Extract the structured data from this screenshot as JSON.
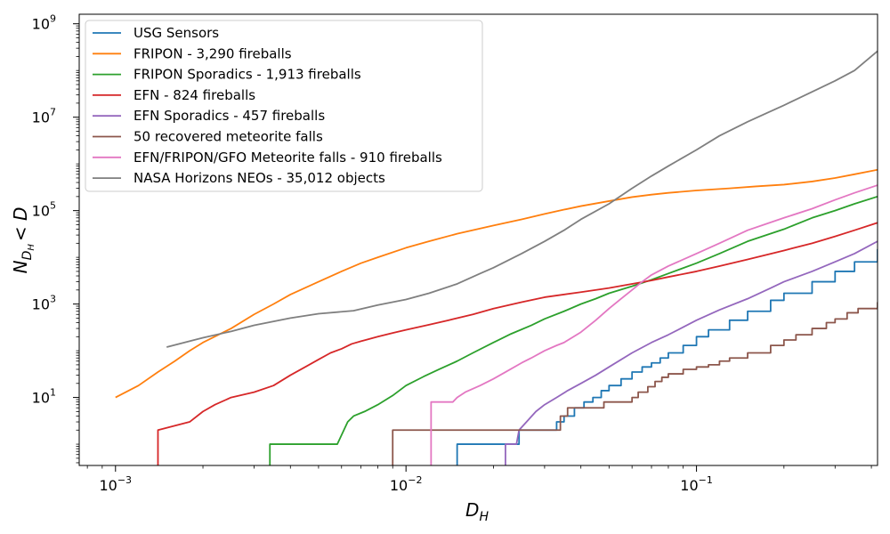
{
  "chart_data": {
    "type": "line",
    "title": "",
    "xlabel": {
      "main": "D",
      "sub": "H"
    },
    "ylabel": {
      "main": "N",
      "sub": "D",
      "subsub": "H",
      "rest": "< D"
    },
    "xscale": "log",
    "yscale": "log",
    "xlim": [
      0.00075,
      0.42
    ],
    "ylim": [
      0.35,
      1600000000.0
    ],
    "grid": false,
    "legend_position": "top-left",
    "xticks": [
      {
        "value": 0.001,
        "base": "10",
        "exp": "−3"
      },
      {
        "value": 0.01,
        "base": "10",
        "exp": "−2"
      },
      {
        "value": 0.1,
        "base": "10",
        "exp": "−1"
      }
    ],
    "yticks": [
      {
        "value": 10,
        "base": "10",
        "exp": "1"
      },
      {
        "value": 1000,
        "base": "10",
        "exp": "3"
      },
      {
        "value": 100000,
        "base": "10",
        "exp": "5"
      },
      {
        "value": 10000000,
        "base": "10",
        "exp": "7"
      },
      {
        "value": 1000000000,
        "base": "10",
        "exp": "9"
      }
    ],
    "series": [
      {
        "name": "USG Sensors",
        "color": "#1f77b4",
        "step": true,
        "points": [
          [
            0.015,
            0.2
          ],
          [
            0.015,
            1
          ],
          [
            0.0245,
            1
          ],
          [
            0.0245,
            2
          ],
          [
            0.032,
            2
          ],
          [
            0.033,
            3
          ],
          [
            0.035,
            4
          ],
          [
            0.038,
            6
          ],
          [
            0.041,
            8
          ],
          [
            0.044,
            10
          ],
          [
            0.047,
            14
          ],
          [
            0.05,
            18
          ],
          [
            0.055,
            25
          ],
          [
            0.06,
            35
          ],
          [
            0.065,
            45
          ],
          [
            0.07,
            55
          ],
          [
            0.075,
            70
          ],
          [
            0.08,
            90
          ],
          [
            0.09,
            130
          ],
          [
            0.1,
            200
          ],
          [
            0.11,
            280
          ],
          [
            0.13,
            450
          ],
          [
            0.15,
            700
          ],
          [
            0.18,
            1200
          ],
          [
            0.2,
            1700
          ],
          [
            0.25,
            3000
          ],
          [
            0.3,
            5000
          ],
          [
            0.35,
            8000
          ],
          [
            0.42,
            15000
          ]
        ]
      },
      {
        "name": "FRIPON - 3,290 fireballs",
        "color": "#ff7f0e",
        "step": false,
        "points": [
          [
            0.001,
            10
          ],
          [
            0.0012,
            18
          ],
          [
            0.0014,
            35
          ],
          [
            0.0016,
            60
          ],
          [
            0.0018,
            100
          ],
          [
            0.002,
            150
          ],
          [
            0.0025,
            300
          ],
          [
            0.003,
            600
          ],
          [
            0.0035,
            1000
          ],
          [
            0.004,
            1600
          ],
          [
            0.005,
            3000
          ],
          [
            0.006,
            5000
          ],
          [
            0.007,
            7500
          ],
          [
            0.008,
            10000
          ],
          [
            0.01,
            16000
          ],
          [
            0.012,
            22000
          ],
          [
            0.015,
            32000
          ],
          [
            0.02,
            48000
          ],
          [
            0.025,
            65000
          ],
          [
            0.03,
            85000
          ],
          [
            0.035,
            105000
          ],
          [
            0.04,
            125000
          ],
          [
            0.05,
            160000
          ],
          [
            0.06,
            195000
          ],
          [
            0.07,
            220000
          ],
          [
            0.08,
            240000
          ],
          [
            0.1,
            270000
          ],
          [
            0.13,
            300000
          ],
          [
            0.16,
            330000
          ],
          [
            0.2,
            360000
          ],
          [
            0.25,
            420000
          ],
          [
            0.3,
            500000
          ],
          [
            0.35,
            600000
          ],
          [
            0.42,
            750000
          ]
        ]
      },
      {
        "name": "FRIPON Sporadics - 1,913 fireballs",
        "color": "#2ca02c",
        "step": false,
        "points": [
          [
            0.0034,
            0.2
          ],
          [
            0.0034,
            1
          ],
          [
            0.0058,
            1
          ],
          [
            0.0063,
            3
          ],
          [
            0.0066,
            4
          ],
          [
            0.0072,
            5
          ],
          [
            0.008,
            7
          ],
          [
            0.009,
            11
          ],
          [
            0.01,
            18
          ],
          [
            0.0115,
            28
          ],
          [
            0.013,
            40
          ],
          [
            0.015,
            60
          ],
          [
            0.017,
            90
          ],
          [
            0.02,
            150
          ],
          [
            0.023,
            230
          ],
          [
            0.027,
            350
          ],
          [
            0.03,
            480
          ],
          [
            0.035,
            700
          ],
          [
            0.04,
            1000
          ],
          [
            0.045,
            1300
          ],
          [
            0.05,
            1700
          ],
          [
            0.06,
            2400
          ],
          [
            0.07,
            3300
          ],
          [
            0.08,
            4500
          ],
          [
            0.1,
            7500
          ],
          [
            0.12,
            12000
          ],
          [
            0.15,
            22000
          ],
          [
            0.2,
            40000
          ],
          [
            0.25,
            70000
          ],
          [
            0.3,
            100000
          ],
          [
            0.35,
            140000
          ],
          [
            0.42,
            200000
          ]
        ]
      },
      {
        "name": "EFN - 824 fireballs",
        "color": "#d62728",
        "step": false,
        "points": [
          [
            0.0014,
            0.2
          ],
          [
            0.0014,
            2
          ],
          [
            0.0018,
            3
          ],
          [
            0.002,
            5
          ],
          [
            0.0022,
            7
          ],
          [
            0.0025,
            10
          ],
          [
            0.003,
            13
          ],
          [
            0.0035,
            18
          ],
          [
            0.004,
            30
          ],
          [
            0.0045,
            45
          ],
          [
            0.005,
            65
          ],
          [
            0.0055,
            90
          ],
          [
            0.006,
            110
          ],
          [
            0.0065,
            140
          ],
          [
            0.007,
            160
          ],
          [
            0.008,
            200
          ],
          [
            0.009,
            240
          ],
          [
            0.01,
            280
          ],
          [
            0.012,
            360
          ],
          [
            0.014,
            450
          ],
          [
            0.017,
            600
          ],
          [
            0.02,
            800
          ],
          [
            0.025,
            1100
          ],
          [
            0.03,
            1400
          ],
          [
            0.04,
            1800
          ],
          [
            0.05,
            2200
          ],
          [
            0.06,
            2700
          ],
          [
            0.07,
            3200
          ],
          [
            0.08,
            3800
          ],
          [
            0.1,
            5000
          ],
          [
            0.12,
            6500
          ],
          [
            0.15,
            9000
          ],
          [
            0.2,
            14000
          ],
          [
            0.25,
            20000
          ],
          [
            0.3,
            28000
          ],
          [
            0.35,
            38000
          ],
          [
            0.42,
            55000
          ]
        ]
      },
      {
        "name": "EFN Sporadics - 457 fireballs",
        "color": "#9467bd",
        "step": false,
        "points": [
          [
            0.022,
            0.2
          ],
          [
            0.022,
            1
          ],
          [
            0.024,
            1
          ],
          [
            0.0245,
            2
          ],
          [
            0.026,
            3
          ],
          [
            0.028,
            5
          ],
          [
            0.03,
            7
          ],
          [
            0.033,
            10
          ],
          [
            0.036,
            14
          ],
          [
            0.04,
            20
          ],
          [
            0.045,
            30
          ],
          [
            0.05,
            45
          ],
          [
            0.06,
            90
          ],
          [
            0.07,
            150
          ],
          [
            0.08,
            220
          ],
          [
            0.09,
            320
          ],
          [
            0.1,
            450
          ],
          [
            0.12,
            750
          ],
          [
            0.15,
            1300
          ],
          [
            0.18,
            2200
          ],
          [
            0.2,
            3000
          ],
          [
            0.25,
            5000
          ],
          [
            0.3,
            8000
          ],
          [
            0.35,
            12000
          ],
          [
            0.42,
            22000
          ]
        ]
      },
      {
        "name": "50 recovered meteorite falls",
        "color": "#8c564b",
        "step": true,
        "points": [
          [
            0.009,
            0.2
          ],
          [
            0.009,
            2
          ],
          [
            0.033,
            2
          ],
          [
            0.034,
            4
          ],
          [
            0.036,
            6
          ],
          [
            0.045,
            6
          ],
          [
            0.048,
            8
          ],
          [
            0.058,
            8
          ],
          [
            0.06,
            10
          ],
          [
            0.063,
            13
          ],
          [
            0.068,
            17
          ],
          [
            0.072,
            22
          ],
          [
            0.076,
            27
          ],
          [
            0.08,
            32
          ],
          [
            0.09,
            40
          ],
          [
            0.1,
            45
          ],
          [
            0.11,
            50
          ],
          [
            0.12,
            60
          ],
          [
            0.13,
            70
          ],
          [
            0.15,
            90
          ],
          [
            0.18,
            130
          ],
          [
            0.2,
            170
          ],
          [
            0.22,
            220
          ],
          [
            0.25,
            300
          ],
          [
            0.28,
            400
          ],
          [
            0.3,
            480
          ],
          [
            0.33,
            650
          ],
          [
            0.36,
            800
          ],
          [
            0.42,
            1100
          ]
        ]
      },
      {
        "name": "EFN/FRIPON/GFO Meteorite falls - 910 fireballs",
        "color": "#e377c2",
        "step": false,
        "points": [
          [
            0.0122,
            0.2
          ],
          [
            0.0122,
            8
          ],
          [
            0.0145,
            8
          ],
          [
            0.015,
            10
          ],
          [
            0.016,
            13
          ],
          [
            0.018,
            18
          ],
          [
            0.02,
            25
          ],
          [
            0.022,
            35
          ],
          [
            0.025,
            55
          ],
          [
            0.027,
            70
          ],
          [
            0.03,
            100
          ],
          [
            0.033,
            130
          ],
          [
            0.035,
            150
          ],
          [
            0.04,
            250
          ],
          [
            0.045,
            450
          ],
          [
            0.05,
            800
          ],
          [
            0.055,
            1300
          ],
          [
            0.06,
            2000
          ],
          [
            0.065,
            3000
          ],
          [
            0.07,
            4200
          ],
          [
            0.08,
            6500
          ],
          [
            0.1,
            12000
          ],
          [
            0.12,
            20000
          ],
          [
            0.15,
            38000
          ],
          [
            0.2,
            70000
          ],
          [
            0.25,
            110000
          ],
          [
            0.3,
            170000
          ],
          [
            0.35,
            240000
          ],
          [
            0.42,
            350000
          ]
        ]
      },
      {
        "name": "NASA Horizons NEOs - 35,012 objects",
        "color": "#7f7f7f",
        "step": false,
        "points": [
          [
            0.0015,
            120
          ],
          [
            0.002,
            190
          ],
          [
            0.0025,
            260
          ],
          [
            0.003,
            350
          ],
          [
            0.004,
            500
          ],
          [
            0.005,
            620
          ],
          [
            0.0066,
            720
          ],
          [
            0.008,
            950
          ],
          [
            0.01,
            1250
          ],
          [
            0.012,
            1700
          ],
          [
            0.015,
            2700
          ],
          [
            0.018,
            4500
          ],
          [
            0.02,
            6000
          ],
          [
            0.025,
            12000
          ],
          [
            0.03,
            22000
          ],
          [
            0.035,
            38000
          ],
          [
            0.04,
            65000
          ],
          [
            0.05,
            140000
          ],
          [
            0.06,
            300000
          ],
          [
            0.07,
            550000
          ],
          [
            0.08,
            900000
          ],
          [
            0.1,
            2000000
          ],
          [
            0.12,
            4000000
          ],
          [
            0.15,
            8000000
          ],
          [
            0.2,
            18000000
          ],
          [
            0.25,
            35000000
          ],
          [
            0.3,
            60000000
          ],
          [
            0.35,
            100000000
          ],
          [
            0.42,
            260000000
          ]
        ]
      }
    ]
  }
}
